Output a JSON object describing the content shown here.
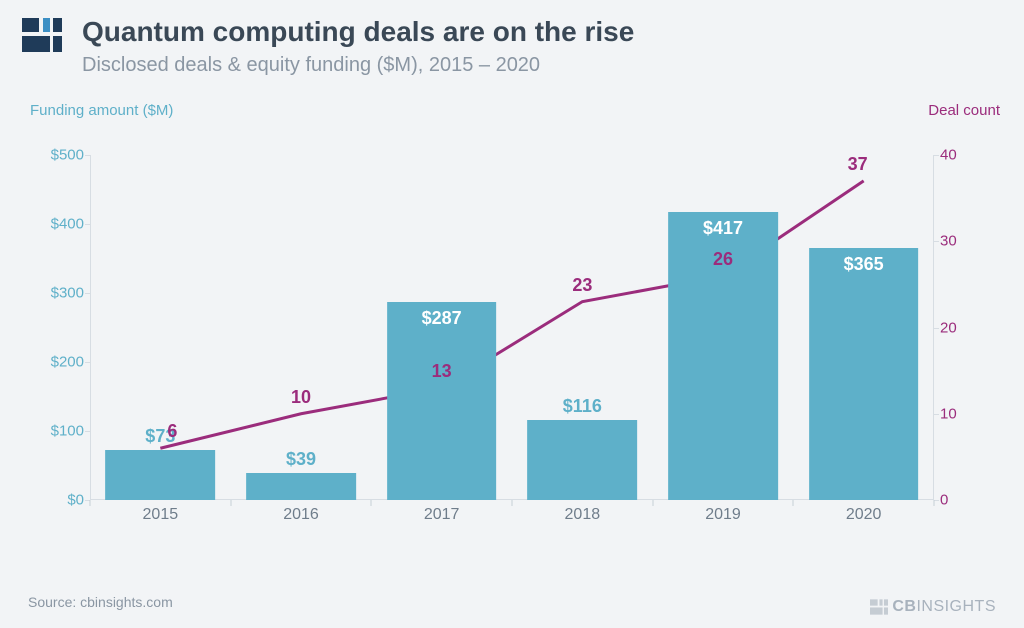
{
  "title": "Quantum computing deals are on the rise",
  "subtitle": "Disclosed deals & equity funding ($M), 2015 – 2020",
  "left_axis_label": "Funding amount ($M)",
  "right_axis_label": "Deal count",
  "source": "Source: cbinsights.com",
  "footer_brand": "CBINSIGHTS",
  "chart": {
    "type": "bar+line",
    "categories": [
      "2015",
      "2016",
      "2017",
      "2018",
      "2019",
      "2020"
    ],
    "bars": {
      "values": [
        73,
        39,
        287,
        116,
        417,
        365
      ],
      "labels": [
        "$73",
        "$39",
        "$287",
        "$116",
        "$417",
        "$365"
      ],
      "label_inside": [
        false,
        false,
        true,
        false,
        true,
        true
      ],
      "color": "#5eb0c9",
      "label_color": "#ffffff",
      "bar_width_ratio": 0.78
    },
    "line": {
      "values": [
        6,
        10,
        13,
        23,
        26,
        37
      ],
      "labels": [
        "6",
        "10",
        "13",
        "23",
        "26",
        "37"
      ],
      "color": "#9b2c7c",
      "line_width": 3
    },
    "left_axis": {
      "ylim": [
        0,
        500
      ],
      "ticks": [
        0,
        100,
        200,
        300,
        400,
        500
      ],
      "tick_labels": [
        "$0",
        "$100",
        "$200",
        "$300",
        "$400",
        "$500"
      ],
      "color": "#5fb0c9"
    },
    "right_axis": {
      "ylim": [
        0,
        40
      ],
      "ticks": [
        0,
        10,
        20,
        30,
        40
      ],
      "tick_labels": [
        "0",
        "10",
        "20",
        "30",
        "40"
      ],
      "color": "#9b2c7c"
    },
    "background_color": "#f2f4f6",
    "axis_line_color": "#d7dde3",
    "xtick_color": "#6f7d8b",
    "title_fontsize": 28,
    "subtitle_fontsize": 20
  },
  "logo": {
    "square_color": "#1f3b59",
    "accent_color": "#3c8fc4"
  }
}
